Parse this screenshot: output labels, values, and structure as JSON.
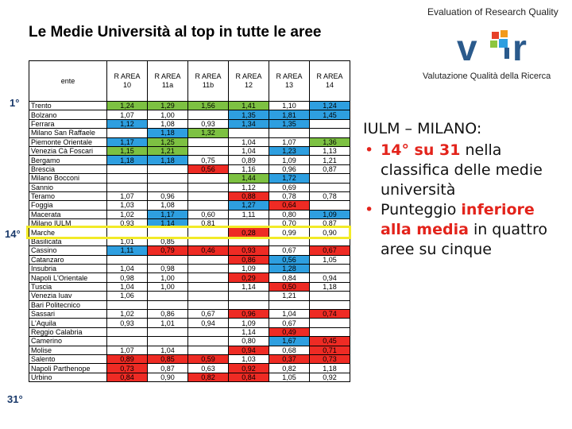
{
  "header": {
    "title": "Le Medie Università al top in tutte le aree",
    "logo_tagline": "Evaluation of Research Quality",
    "logo_subtitle": "Valutazione Qualità della Ricerca",
    "logo_name": "vQr"
  },
  "table": {
    "columns": [
      {
        "line1": "",
        "line2": "ente"
      },
      {
        "line1": "R AREA",
        "line2": "10"
      },
      {
        "line1": "R AREA",
        "line2": "11a"
      },
      {
        "line1": "R AREA",
        "line2": "11b"
      },
      {
        "line1": "R AREA",
        "line2": "12"
      },
      {
        "line1": "R AREA",
        "line2": "13"
      },
      {
        "line1": "R AREA",
        "line2": "14"
      }
    ],
    "rows": [
      {
        "ente": "Trento",
        "v": [
          "1,24",
          "1,29",
          "1,56",
          "1,41",
          "1,10",
          "1,24"
        ],
        "c": [
          "g",
          "g",
          "g",
          "g",
          "",
          "b"
        ]
      },
      {
        "ente": "Bolzano",
        "v": [
          "1,07",
          "1,00",
          "",
          "1,35",
          "1,81",
          "1,45"
        ],
        "c": [
          "",
          "",
          "",
          "b",
          "b",
          "b"
        ]
      },
      {
        "ente": "Ferrara",
        "v": [
          "1,12",
          "1,08",
          "0,93",
          "1,34",
          "1,35",
          ""
        ],
        "c": [
          "b",
          "",
          "",
          "b",
          "b",
          ""
        ]
      },
      {
        "ente": "Milano San Raffaele",
        "v": [
          "",
          "1,18",
          "1,32",
          "",
          "",
          ""
        ],
        "c": [
          "",
          "b",
          "g",
          "",
          "",
          ""
        ]
      },
      {
        "ente": "Piemonte Orientale",
        "v": [
          "1,17",
          "1,25",
          "",
          "1,04",
          "1,07",
          "1,36"
        ],
        "c": [
          "b",
          "g",
          "",
          "",
          "",
          "g"
        ]
      },
      {
        "ente": "Venezia Cà Foscari",
        "v": [
          "1,15",
          "1,21",
          "",
          "1,04",
          "1,23",
          "1,13"
        ],
        "c": [
          "g",
          "g",
          "",
          "",
          "b",
          ""
        ]
      },
      {
        "ente": "Bergamo",
        "v": [
          "1,18",
          "1,18",
          "0,75",
          "0,89",
          "1,09",
          "1,21"
        ],
        "c": [
          "b",
          "b",
          "",
          "",
          "",
          ""
        ]
      },
      {
        "ente": "Brescia",
        "v": [
          "",
          "",
          "0,56",
          "1,16",
          "0,96",
          "0,87"
        ],
        "c": [
          "",
          "",
          "r",
          "",
          "",
          ""
        ]
      },
      {
        "ente": "Milano Bocconi",
        "v": [
          "",
          "",
          "",
          "1,44",
          "1,72",
          ""
        ],
        "c": [
          "",
          "",
          "",
          "g",
          "b",
          ""
        ]
      },
      {
        "ente": "Sannio",
        "v": [
          "",
          "",
          "",
          "1,12",
          "0,69",
          ""
        ],
        "c": [
          "",
          "",
          "",
          "",
          "",
          ""
        ]
      },
      {
        "ente": "Teramo",
        "v": [
          "1,07",
          "0,96",
          "",
          "0,88",
          "0,78",
          "0,78"
        ],
        "c": [
          "",
          "",
          "",
          "r",
          "",
          ""
        ]
      },
      {
        "ente": "Foggia",
        "v": [
          "1,03",
          "1,08",
          "",
          "1,27",
          "0,64",
          ""
        ],
        "c": [
          "",
          "",
          "",
          "b",
          "r",
          ""
        ]
      },
      {
        "ente": "Macerata",
        "v": [
          "1,02",
          "1,17",
          "0,60",
          "1,11",
          "0,80",
          "1,09"
        ],
        "c": [
          "",
          "b",
          "",
          "",
          "",
          "b"
        ]
      },
      {
        "ente": "Milano IULM",
        "v": [
          "0,93",
          "1,14",
          "0,81",
          "",
          "0,70",
          "0,87"
        ],
        "c": [
          "",
          "b",
          "",
          "",
          "",
          ""
        ]
      },
      {
        "ente": "Marche",
        "v": [
          "",
          "",
          "",
          "0,28",
          "0,99",
          "0,90"
        ],
        "c": [
          "",
          "",
          "",
          "r",
          "",
          ""
        ]
      },
      {
        "ente": "Basilicata",
        "v": [
          "1,01",
          "0,85",
          "",
          "",
          "",
          ""
        ],
        "c": [
          "",
          "",
          "",
          "",
          "",
          ""
        ]
      },
      {
        "ente": "Cassino",
        "v": [
          "1,11",
          "0,79",
          "0,46",
          "0,93",
          "0,67",
          "0,67"
        ],
        "c": [
          "b",
          "r",
          "r",
          "r",
          "",
          "r"
        ]
      },
      {
        "ente": "Catanzaro",
        "v": [
          "",
          "",
          "",
          "0,86",
          "0,56",
          "1,05"
        ],
        "c": [
          "",
          "",
          "",
          "r",
          "b",
          ""
        ]
      },
      {
        "ente": "Insubria",
        "v": [
          "1,04",
          "0,98",
          "",
          "1,09",
          "1,28",
          ""
        ],
        "c": [
          "",
          "",
          "",
          "",
          "b",
          ""
        ]
      },
      {
        "ente": "Napoli L'Orientale",
        "v": [
          "0,98",
          "1,00",
          "",
          "0,29",
          "0,84",
          "0,94"
        ],
        "c": [
          "",
          "",
          "",
          "r",
          "",
          ""
        ]
      },
      {
        "ente": "Tuscia",
        "v": [
          "1,04",
          "1,00",
          "",
          "1,14",
          "0,50",
          "1,18"
        ],
        "c": [
          "",
          "",
          "",
          "",
          "r",
          ""
        ]
      },
      {
        "ente": "Venezia Iuav",
        "v": [
          "1,06",
          "",
          "",
          "",
          "1,21",
          ""
        ],
        "c": [
          "",
          "",
          "",
          "",
          "",
          ""
        ]
      },
      {
        "ente": "Bari Politecnico",
        "v": [
          "",
          "",
          "",
          "",
          "",
          ""
        ],
        "c": [
          "",
          "",
          "",
          "",
          "",
          ""
        ]
      },
      {
        "ente": "Sassari",
        "v": [
          "1,02",
          "0,86",
          "0,67",
          "0,96",
          "1,04",
          "0,74"
        ],
        "c": [
          "",
          "",
          "",
          "r",
          "",
          "r"
        ]
      },
      {
        "ente": "L'Aquila",
        "v": [
          "0,93",
          "1,01",
          "0,94",
          "1,09",
          "0,67",
          ""
        ],
        "c": [
          "",
          "",
          "",
          "",
          "",
          ""
        ]
      },
      {
        "ente": "Reggio Calabria",
        "v": [
          "",
          "",
          "",
          "1,14",
          "0,49",
          ""
        ],
        "c": [
          "",
          "",
          "",
          "",
          "r",
          ""
        ]
      },
      {
        "ente": "Camerino",
        "v": [
          "",
          "",
          "",
          "0,80",
          "1,67",
          "0,45"
        ],
        "c": [
          "",
          "",
          "",
          "",
          "b",
          "r"
        ]
      },
      {
        "ente": "Molise",
        "v": [
          "1,07",
          "1,04",
          "",
          "0,94",
          "0,68",
          "0,71"
        ],
        "c": [
          "",
          "",
          "",
          "r",
          "",
          "r"
        ]
      },
      {
        "ente": "Salento",
        "v": [
          "0,89",
          "0,85",
          "0,59",
          "1,03",
          "0,37",
          "0,73"
        ],
        "c": [
          "r",
          "r",
          "r",
          "",
          "r",
          "r"
        ]
      },
      {
        "ente": "Napoli Parthenope",
        "v": [
          "0,73",
          "0,87",
          "0,63",
          "0,92",
          "0,82",
          "1,18"
        ],
        "c": [
          "r",
          "",
          "",
          "r",
          "",
          ""
        ]
      },
      {
        "ente": "Urbino",
        "v": [
          "0,84",
          "0,90",
          "0,82",
          "0,84",
          "1,05",
          "0,92"
        ],
        "c": [
          "r",
          "",
          "r",
          "r",
          "",
          ""
        ]
      }
    ]
  },
  "ranks": {
    "first": "1°",
    "highlight": "14°",
    "last": "31°"
  },
  "panel": {
    "heading": "IULM – MILANO:",
    "b1_red": "14° su 31",
    "b1_rest": " nella classifica delle medie università",
    "b2_start": "Punteggio ",
    "b2_red": "inferiore alla media",
    "b2_rest": " in quattro aree su cinque"
  },
  "colors": {
    "green": "#7dc142",
    "blue": "#2e9fe0",
    "red": "#ee2b24",
    "highlight": "#f2ea27",
    "accent": "#e3231b"
  }
}
